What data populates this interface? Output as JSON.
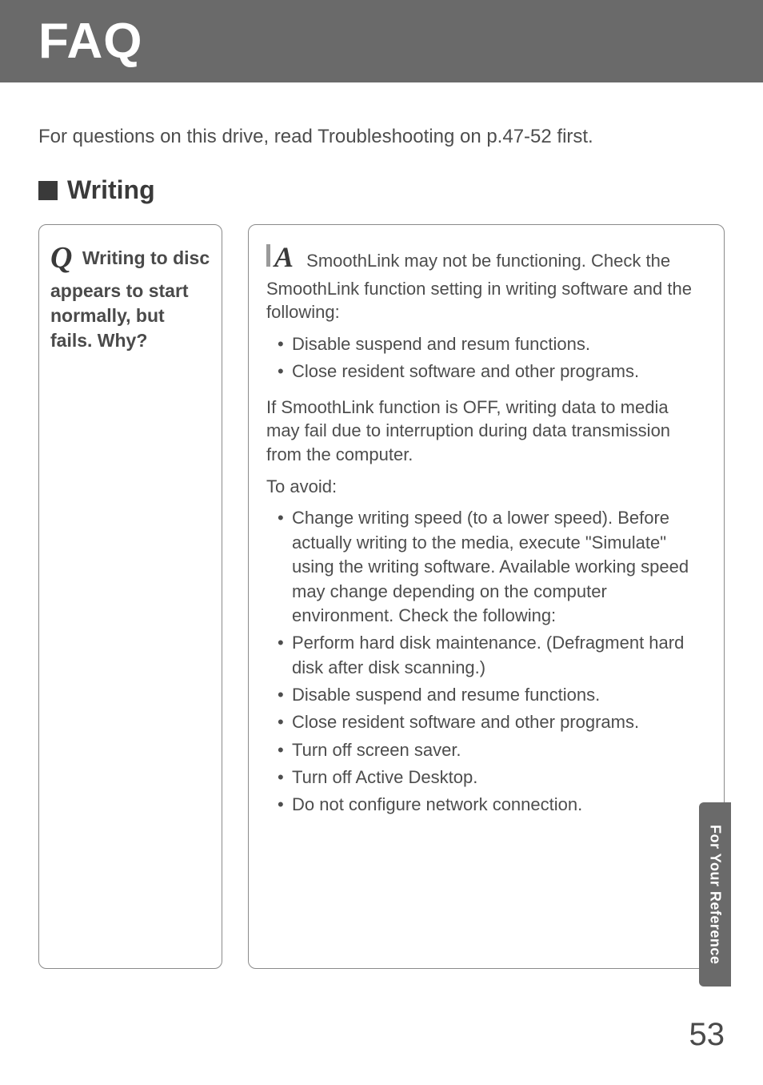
{
  "header": {
    "title": "FAQ"
  },
  "intro": "For questions on this drive, read Troubleshooting on p.47-52 first.",
  "section": {
    "title": "Writing"
  },
  "question": {
    "letter": "Q",
    "text": "Writing to disc appears to start normally, but fails. Why?"
  },
  "answer": {
    "letter": "A",
    "p1": "SmoothLink may not be functioning. Check the SmoothLink function setting in writing software and the following:",
    "list1": [
      "Disable suspend and resum functions.",
      "Close resident software and other programs."
    ],
    "p2": "If SmoothLink function is OFF, writing data to media may fail due to interruption during data transmission from the computer.",
    "p3": "To avoid:",
    "list2": [
      "Change writing speed (to a lower speed). Before actually writing to the media, execute \"Simulate\" using the writing software. Available working speed may change depending on the computer environment. Check the following:",
      "Perform hard disk maintenance. (Defragment hard disk after disk scanning.)",
      "Disable suspend and resume functions.",
      "Close resident software and other programs.",
      "Turn off screen saver.",
      "Turn off Active Desktop.",
      "Do not configure network connection."
    ]
  },
  "sideTab": "For Your Reference",
  "pageNumber": "53"
}
